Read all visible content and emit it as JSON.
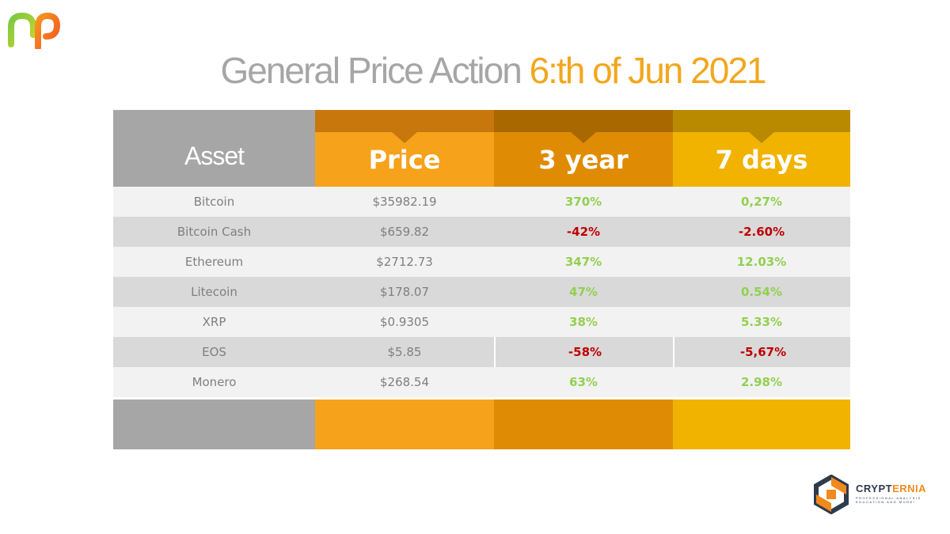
{
  "header": {
    "title_main": "General Price Action",
    "title_date": "6:th of Jun 2021"
  },
  "colors": {
    "grey": "#a6a6a6",
    "price": "#f6a21b",
    "three_year": "#df8c04",
    "seven_days": "#f1b300",
    "positive": "#92d050",
    "negative": "#c00000"
  },
  "table": {
    "columns": [
      "Asset",
      "Price",
      "3 year",
      "7 days"
    ],
    "rows": [
      {
        "asset": "Bitcoin",
        "price": "$35982.19",
        "y3": "370%",
        "y3_sign": "pos",
        "d7": "0,27%",
        "d7_sign": "pos"
      },
      {
        "asset": "Bitcoin Cash",
        "price": "$659.82",
        "y3": "-42%",
        "y3_sign": "neg",
        "d7": "-2.60%",
        "d7_sign": "neg"
      },
      {
        "asset": "Ethereum",
        "price": "$2712.73",
        "y3": "347%",
        "y3_sign": "pos",
        "d7": "12.03%",
        "d7_sign": "pos"
      },
      {
        "asset": "Litecoin",
        "price": "$178.07",
        "y3": "47%",
        "y3_sign": "pos",
        "d7": "0.54%",
        "d7_sign": "pos"
      },
      {
        "asset": "XRP",
        "price": "$0.9305",
        "y3": "38%",
        "y3_sign": "pos",
        "d7": "5.33%",
        "d7_sign": "pos"
      },
      {
        "asset": "EOS",
        "price": "$5.85",
        "y3": "-58%",
        "y3_sign": "neg",
        "d7": "-5,67%",
        "d7_sign": "neg"
      },
      {
        "asset": "Monero",
        "price": "$268.54",
        "y3": "63%",
        "y3_sign": "pos",
        "d7": "2.98%",
        "d7_sign": "pos"
      }
    ]
  },
  "branding": {
    "logo_left_icon": "np-logo-icon",
    "brand_icon": "crypternia-hexagon-icon",
    "brand_name_a": "CRYPT",
    "brand_name_b": "ERNIA",
    "brand_tagline": "PROFESSIONAL ANALYSIS EDUCATION AND MORE!"
  }
}
